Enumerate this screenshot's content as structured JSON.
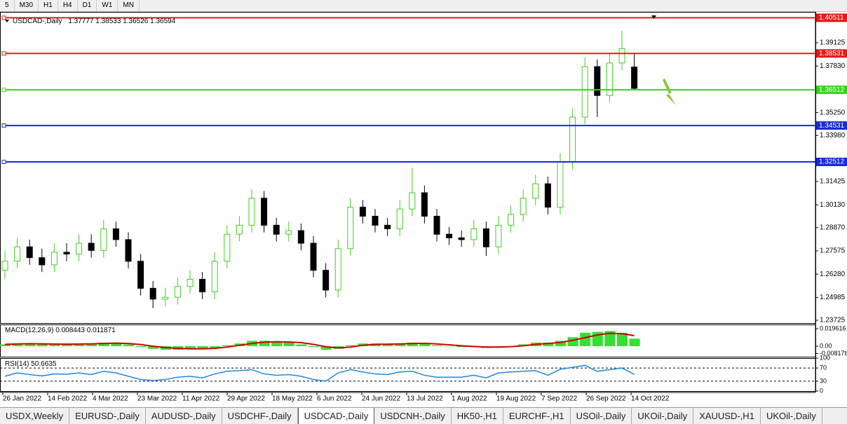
{
  "toolbar": {
    "timeframes": [
      "5",
      "M30",
      "H1",
      "H4",
      "D1",
      "W1",
      "MN"
    ]
  },
  "chart": {
    "type": "candlestick",
    "title": "USDCAD-,Daily",
    "ohlc": [
      [
        1.265,
        1.276,
        1.26,
        1.27
      ],
      [
        1.27,
        1.283,
        1.266,
        1.278
      ],
      [
        1.278,
        1.282,
        1.268,
        1.272
      ],
      [
        1.272,
        1.277,
        1.264,
        1.268
      ],
      [
        1.268,
        1.28,
        1.264,
        1.275
      ],
      [
        1.275,
        1.28,
        1.27,
        1.274
      ],
      [
        1.274,
        1.285,
        1.27,
        1.28
      ],
      [
        1.28,
        1.285,
        1.272,
        1.276
      ],
      [
        1.276,
        1.293,
        1.272,
        1.288
      ],
      [
        1.288,
        1.292,
        1.278,
        1.282
      ],
      [
        1.282,
        1.286,
        1.266,
        1.27
      ],
      [
        1.27,
        1.274,
        1.251,
        1.255
      ],
      [
        1.255,
        1.259,
        1.244,
        1.249
      ],
      [
        1.249,
        1.255,
        1.245,
        1.25
      ],
      [
        1.25,
        1.261,
        1.246,
        1.256
      ],
      [
        1.256,
        1.265,
        1.252,
        1.26
      ],
      [
        1.26,
        1.264,
        1.249,
        1.253
      ],
      [
        1.253,
        1.275,
        1.249,
        1.27
      ],
      [
        1.27,
        1.29,
        1.266,
        1.285
      ],
      [
        1.285,
        1.295,
        1.281,
        1.29
      ],
      [
        1.29,
        1.31,
        1.286,
        1.305
      ],
      [
        1.305,
        1.309,
        1.286,
        1.29
      ],
      [
        1.29,
        1.294,
        1.281,
        1.285
      ],
      [
        1.285,
        1.292,
        1.281,
        1.287
      ],
      [
        1.287,
        1.291,
        1.276,
        1.28
      ],
      [
        1.28,
        1.284,
        1.261,
        1.265
      ],
      [
        1.265,
        1.269,
        1.25,
        1.254
      ],
      [
        1.254,
        1.282,
        1.25,
        1.277
      ],
      [
        1.277,
        1.305,
        1.273,
        1.3
      ],
      [
        1.3,
        1.304,
        1.291,
        1.295
      ],
      [
        1.295,
        1.299,
        1.286,
        1.29
      ],
      [
        1.29,
        1.294,
        1.284,
        1.288
      ],
      [
        1.288,
        1.304,
        1.284,
        1.299
      ],
      [
        1.299,
        1.322,
        1.295,
        1.308
      ],
      [
        1.308,
        1.312,
        1.291,
        1.295
      ],
      [
        1.295,
        1.299,
        1.281,
        1.285
      ],
      [
        1.285,
        1.289,
        1.279,
        1.283
      ],
      [
        1.283,
        1.287,
        1.278,
        1.282
      ],
      [
        1.282,
        1.293,
        1.278,
        1.288
      ],
      [
        1.288,
        1.292,
        1.273,
        1.278
      ],
      [
        1.278,
        1.295,
        1.274,
        1.29
      ],
      [
        1.29,
        1.301,
        1.286,
        1.296
      ],
      [
        1.296,
        1.31,
        1.292,
        1.305
      ],
      [
        1.305,
        1.318,
        1.301,
        1.313
      ],
      [
        1.313,
        1.317,
        1.296,
        1.3
      ],
      [
        1.3,
        1.33,
        1.296,
        1.325
      ],
      [
        1.325,
        1.355,
        1.321,
        1.35
      ],
      [
        1.35,
        1.383,
        1.346,
        1.378
      ],
      [
        1.378,
        1.382,
        1.35,
        1.362
      ],
      [
        1.362,
        1.385,
        1.358,
        1.38
      ],
      [
        1.38,
        1.398,
        1.376,
        1.388
      ],
      [
        1.37777,
        1.38533,
        1.36526,
        1.36594
      ]
    ],
    "ylim": [
      1.23569,
      1.40836
    ],
    "yticks": [
      1.39125,
      {
        "value": 1.3783,
        "label": "1.37830"
      },
      {
        "value": 1.3525,
        "label": "1.35250"
      },
      {
        "value": 1.3398,
        "label": "1.33980"
      },
      1.31425,
      {
        "value": 1.3013,
        "label": "1.30130"
      },
      {
        "value": 1.2887,
        "label": "1.28870"
      },
      1.27575,
      {
        "value": 1.2628,
        "label": "1.26280"
      },
      1.24985,
      1.23725
    ],
    "levels": [
      {
        "value": 1.40511,
        "color": "#e41b1b"
      },
      {
        "value": 1.38531,
        "color": "#e41b1b"
      },
      {
        "value": 1.36512,
        "color": "#3fcf1f"
      },
      {
        "value": 1.34531,
        "color": "#1a2ad6"
      },
      {
        "value": 1.32512,
        "color": "#1a2ad6"
      }
    ],
    "up_color": "#3fcf1f",
    "down_color": "#000000",
    "dates": [
      "26 Jan 2022",
      "14 Feb 2022",
      "4 Mar 2022",
      "23 Mar 2022",
      "11 Apr 2022",
      "29 Apr 2022",
      "18 May 2022",
      "6 Jun 2022",
      "24 Jun 2022",
      "13 Jul 2022",
      "1 Aug 2022",
      "19 Aug 2022",
      "7 Sep 2022",
      "26 Sep 2022",
      "14 Oct 2022"
    ]
  },
  "macd": {
    "title": "MACD(12,26,9)",
    "histogram": [
      0.002,
      0.003,
      0.003,
      0.002,
      0.002,
      0.002,
      0.003,
      0.003,
      0.004,
      0.004,
      0.002,
      -0.001,
      -0.003,
      -0.004,
      -0.004,
      -0.003,
      -0.003,
      -0.002,
      0.001,
      0.003,
      0.006,
      0.006,
      0.005,
      0.004,
      0.002,
      -0.001,
      -0.004,
      -0.003,
      0.001,
      0.003,
      0.003,
      0.002,
      0.003,
      0.004,
      0.003,
      0.001,
      0.0,
      -0.001,
      -0.001,
      -0.002,
      -0.001,
      0.0,
      0.002,
      0.004,
      0.004,
      0.006,
      0.01,
      0.015,
      0.016,
      0.017,
      0.015,
      0.008443
    ],
    "signal": [
      0.002,
      0.0025,
      0.0028,
      0.0026,
      0.0024,
      0.0022,
      0.0024,
      0.0026,
      0.003,
      0.0034,
      0.003,
      0.0018,
      0.0,
      -0.0015,
      -0.0025,
      -0.003,
      -0.003,
      -0.0025,
      -0.001,
      0.001,
      0.003,
      0.0045,
      0.005,
      0.0047,
      0.004,
      0.002,
      -0.0005,
      -0.002,
      -0.001,
      0.001,
      0.002,
      0.0022,
      0.0025,
      0.003,
      0.0032,
      0.0025,
      0.0015,
      0.0005,
      -0.0003,
      -0.001,
      -0.001,
      -0.0005,
      0.0005,
      0.002,
      0.003,
      0.0042,
      0.0065,
      0.0095,
      0.0125,
      0.0145,
      0.014,
      0.011871
    ],
    "ylim": [
      -0.0118,
      0.0243
    ],
    "yticks": [
      0.019616,
      {
        "value": 0,
        "label": "0.00"
      },
      -0.008178
    ]
  },
  "rsi": {
    "title": "RSI(14)",
    "values": [
      45,
      55,
      50,
      46,
      52,
      51,
      55,
      50,
      60,
      55,
      45,
      35,
      32,
      35,
      42,
      45,
      40,
      52,
      60,
      62,
      65,
      52,
      48,
      50,
      45,
      35,
      30,
      55,
      65,
      58,
      52,
      50,
      58,
      60,
      48,
      42,
      42,
      42,
      48,
      40,
      55,
      58,
      60,
      62,
      48,
      66,
      72,
      78,
      60,
      65,
      70,
      50.6635
    ],
    "ylim": [
      0,
      100
    ],
    "yticks": [
      100,
      70,
      30,
      0
    ]
  },
  "tabs": [
    "USDX,Weekly",
    "EURUSD-,Daily",
    "AUDUSD-,Daily",
    "USDCHF-,Daily",
    "USDCAD-,Daily",
    "USDCNH-,Daily",
    "HK50-,H1",
    "EURCHF-,H1",
    "USOil-,Daily",
    "UKOil-,Daily",
    "XAUUSD-,H1",
    "UKOil-,Daily"
  ],
  "active_tab": 4
}
